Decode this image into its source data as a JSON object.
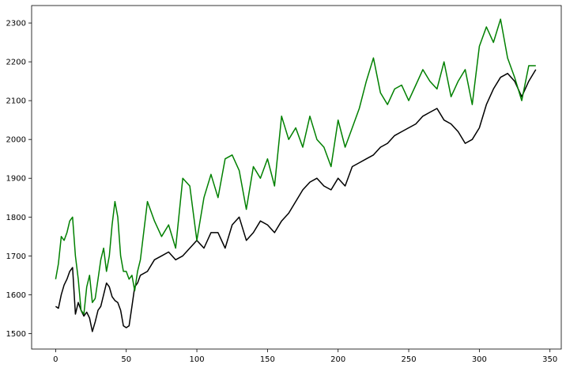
{
  "chart_data": {
    "type": "line",
    "title": "",
    "xlabel": "",
    "ylabel": "",
    "xlim": [
      -17,
      358
    ],
    "ylim": [
      1460,
      2345
    ],
    "x_ticks": [
      0,
      50,
      100,
      150,
      200,
      250,
      300,
      350
    ],
    "y_ticks": [
      1500,
      1600,
      1700,
      1800,
      1900,
      2000,
      2100,
      2200,
      2300
    ],
    "grid": false,
    "legend": "none",
    "series": [
      {
        "color": "#000000",
        "x": [
          0,
          2,
          4,
          6,
          8,
          10,
          12,
          14,
          16,
          18,
          20,
          22,
          24,
          26,
          28,
          30,
          32,
          34,
          36,
          38,
          40,
          42,
          44,
          46,
          48,
          50,
          52,
          54,
          56,
          58,
          60,
          65,
          70,
          75,
          80,
          85,
          90,
          95,
          100,
          105,
          110,
          115,
          120,
          125,
          130,
          135,
          140,
          145,
          150,
          155,
          160,
          165,
          170,
          175,
          180,
          185,
          190,
          195,
          200,
          205,
          210,
          215,
          220,
          225,
          230,
          235,
          240,
          245,
          250,
          255,
          260,
          265,
          270,
          275,
          280,
          285,
          290,
          295,
          300,
          305,
          310,
          315,
          320,
          325,
          330,
          335,
          340
        ],
        "y": [
          1570,
          1565,
          1600,
          1625,
          1640,
          1660,
          1670,
          1550,
          1580,
          1560,
          1545,
          1555,
          1540,
          1505,
          1530,
          1560,
          1570,
          1600,
          1630,
          1620,
          1595,
          1585,
          1580,
          1560,
          1520,
          1515,
          1520,
          1570,
          1620,
          1630,
          1650,
          1660,
          1690,
          1700,
          1710,
          1690,
          1700,
          1720,
          1740,
          1720,
          1760,
          1760,
          1720,
          1780,
          1800,
          1740,
          1760,
          1790,
          1780,
          1760,
          1790,
          1810,
          1840,
          1870,
          1890,
          1900,
          1880,
          1870,
          1900,
          1880,
          1930,
          1940,
          1950,
          1960,
          1980,
          1990,
          2010,
          2020,
          2030,
          2040,
          2060,
          2070,
          2080,
          2050,
          2040,
          2020,
          1990,
          2000,
          2030,
          2090,
          2130,
          2160,
          2170,
          2150,
          2110,
          2150,
          2180
        ]
      },
      {
        "color": "#008000",
        "x": [
          0,
          2,
          4,
          6,
          8,
          10,
          12,
          14,
          16,
          18,
          20,
          22,
          24,
          26,
          28,
          30,
          32,
          34,
          36,
          38,
          40,
          42,
          44,
          46,
          48,
          50,
          52,
          54,
          56,
          58,
          60,
          65,
          70,
          75,
          80,
          85,
          90,
          95,
          100,
          105,
          110,
          115,
          120,
          125,
          130,
          135,
          140,
          145,
          150,
          155,
          160,
          165,
          170,
          175,
          180,
          185,
          190,
          195,
          200,
          205,
          210,
          215,
          220,
          225,
          230,
          235,
          240,
          245,
          250,
          255,
          260,
          265,
          270,
          275,
          280,
          285,
          290,
          295,
          300,
          305,
          310,
          315,
          320,
          325,
          330,
          335,
          340
        ],
        "y": [
          1640,
          1680,
          1750,
          1740,
          1760,
          1790,
          1800,
          1700,
          1640,
          1560,
          1550,
          1620,
          1650,
          1580,
          1590,
          1640,
          1690,
          1720,
          1660,
          1700,
          1780,
          1840,
          1800,
          1700,
          1660,
          1660,
          1640,
          1650,
          1610,
          1660,
          1690,
          1840,
          1790,
          1750,
          1780,
          1720,
          1900,
          1880,
          1740,
          1850,
          1910,
          1850,
          1950,
          1960,
          1920,
          1820,
          1930,
          1900,
          1950,
          1880,
          2060,
          2000,
          2030,
          1980,
          2060,
          2000,
          1980,
          1930,
          2050,
          1980,
          2030,
          2080,
          2150,
          2210,
          2120,
          2090,
          2130,
          2140,
          2100,
          2140,
          2180,
          2150,
          2130,
          2200,
          2110,
          2150,
          2180,
          2090,
          2240,
          2290,
          2250,
          2310,
          2210,
          2160,
          2100,
          2190,
          2190
        ]
      }
    ]
  }
}
